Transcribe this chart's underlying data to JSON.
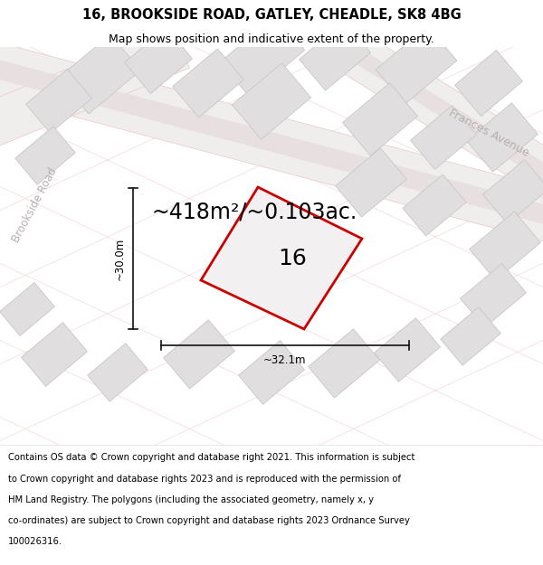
{
  "title_line1": "16, BROOKSIDE ROAD, GATLEY, CHEADLE, SK8 4BG",
  "title_line2": "Map shows position and indicative extent of the property.",
  "area_text": "~418m²/~0.103ac.",
  "label_number": "16",
  "dim_height": "~30.0m",
  "dim_width": "~32.1m",
  "footer_lines": [
    "Contains OS data © Crown copyright and database right 2021. This information is subject",
    "to Crown copyright and database rights 2023 and is reproduced with the permission of",
    "HM Land Registry. The polygons (including the associated geometry, namely x, y",
    "co-ordinates) are subject to Crown copyright and database rights 2023 Ordnance Survey",
    "100026316."
  ],
  "bg_color": "#ffffff",
  "map_bg": "#f7f6f6",
  "road_fill": "#f0eded",
  "road_outline": "#e8c8c8",
  "road_center_fill": "#e8e0e0",
  "building_fill": "#e0dede",
  "building_stroke": "#c8c8c8",
  "plot_stroke": "#cc0000",
  "plot_fill": "#f2f0f0",
  "dim_line_color": "#111111",
  "street_label_color": "#b8b0b0",
  "title_fontsize": 10.5,
  "subtitle_fontsize": 9.0,
  "area_fontsize": 17,
  "label_fontsize": 18,
  "dim_fontsize": 8.5,
  "footer_fontsize": 7.2,
  "street_fontsize": 9.0
}
